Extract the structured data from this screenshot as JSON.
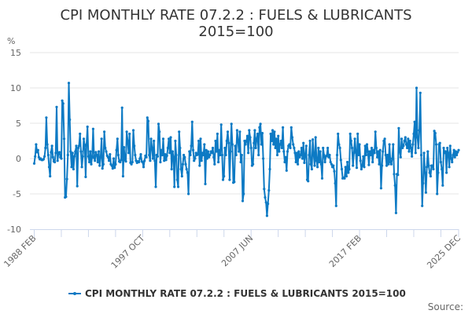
{
  "chart_data": {
    "type": "line",
    "title": "CPI MONTHLY RATE 07.2.2 : FUELS & LUBRICANTS",
    "subtitle": "2015=100",
    "ylabel": "%",
    "xlabel": "",
    "ylim": [
      -10,
      15
    ],
    "yticks": [
      15,
      10,
      5,
      0,
      -5,
      -10
    ],
    "xlim": [
      "1988 FEB",
      "2025 DEC"
    ],
    "xtick_labels": [
      "1988 FEB",
      "1997 OCT",
      "2007 JUN",
      "2017 FEB",
      "2025 DEC"
    ],
    "frequency": "monthly",
    "grid": true,
    "legend_position": "bottom",
    "series": [
      {
        "name": "CPI MONTHLY RATE 07.2.2 : FUELS & LUBRICANTS 2015=100",
        "color": "#0d7ac4",
        "start": "1988 FEB",
        "values": [
          -0.7,
          0.3,
          2.0,
          0.9,
          1.2,
          0.2,
          -0.1,
          0.0,
          -0.2,
          -0.2,
          -0.1,
          0.3,
          1.5,
          5.8,
          2.0,
          0.5,
          -1.2,
          -2.5,
          0.9,
          1.8,
          0.2,
          -0.4,
          -0.5,
          0.8,
          7.3,
          -0.3,
          0.8,
          0.9,
          0.2,
          0.0,
          8.2,
          7.8,
          2.8,
          -5.5,
          -5.4,
          -2.9,
          0.5,
          10.7,
          5.5,
          1.0,
          -1.2,
          0.8,
          -1.5,
          0.3,
          1.0,
          1.8,
          -3.9,
          1.5,
          1.8,
          3.5,
          1.0,
          -1.2,
          0.3,
          2.8,
          1.8,
          -2.6,
          2.0,
          4.5,
          0.3,
          -0.5,
          1.0,
          -0.8,
          0.3,
          4.2,
          0.1,
          -0.3,
          0.9,
          0.5,
          -0.5,
          1.0,
          -1.0,
          0.2,
          2.8,
          -1.4,
          -0.8,
          3.8,
          1.5,
          1.0,
          0.4,
          0.2,
          -0.3,
          0.6,
          -0.8,
          -1.0,
          -1.4,
          0.0,
          -1.3,
          -0.8,
          1.2,
          2.8,
          0.5,
          -0.4,
          -0.5,
          -0.2,
          7.2,
          -2.5,
          1.6,
          -0.2,
          -0.4,
          3.8,
          2.5,
          0.8,
          3.5,
          -0.6,
          -0.8,
          -0.5,
          4.0,
          1.8,
          0.5,
          -0.3,
          -0.6,
          -0.4,
          -0.5,
          0.0,
          0.6,
          -0.4,
          -0.5,
          -1.2,
          -0.3,
          0.4,
          0.2,
          5.8,
          5.3,
          0.5,
          -0.3,
          2.8,
          1.5,
          0.0,
          2.5,
          -0.3,
          -4.0,
          0.5,
          0.3,
          4.9,
          3.8,
          -0.5,
          1.2,
          0.5,
          2.8,
          -0.3,
          0.6,
          -0.2,
          0.4,
          1.5,
          2.8,
          0.8,
          3.0,
          -1.5,
          1.0,
          0.2,
          -4.0,
          2.5,
          0.5,
          -3.0,
          -4.0,
          3.8,
          1.5,
          -1.5,
          -2.5,
          -0.8,
          0.5,
          0.2,
          -0.8,
          -1.5,
          -2.0,
          -5.0,
          1.0,
          0.5,
          1.8,
          5.2,
          1.2,
          -0.3,
          0.0,
          0.8,
          0.5,
          0.6,
          2.5,
          -1.0,
          2.8,
          -0.3,
          0.8,
          0.5,
          2.0,
          -3.6,
          1.2,
          0.0,
          1.0,
          0.2,
          0.5,
          1.0,
          0.8,
          1.5,
          0.2,
          -0.8,
          2.5,
          1.0,
          3.5,
          -0.5,
          1.2,
          0.5,
          4.8,
          0.5,
          -3.0,
          -2.5,
          1.5,
          0.5,
          2.5,
          3.8,
          2.2,
          -3.0,
          1.0,
          4.9,
          2.0,
          -3.4,
          -3.3,
          1.8,
          0.5,
          4.0,
          2.5,
          1.0,
          3.8,
          -0.5,
          0.5,
          -6.0,
          -5.0,
          2.5,
          2.0,
          2.5,
          3.2,
          0.8,
          4.0,
          3.0,
          1.5,
          -1.0,
          -0.8,
          2.2,
          4.0,
          1.5,
          2.8,
          3.5,
          0.5,
          4.4,
          4.9,
          2.0,
          3.6,
          0.0,
          -4.3,
          -5.5,
          -6.2,
          -8.1,
          -6.4,
          -4.5,
          -1.5,
          3.5,
          2.5,
          4.0,
          2.0,
          3.8,
          1.5,
          2.8,
          0.5,
          3.2,
          1.0,
          2.0,
          2.5,
          1.5,
          4.4,
          1.0,
          -0.5,
          0.2,
          -1.7,
          1.0,
          1.8,
          2.0,
          1.5,
          4.4,
          3.0,
          2.0,
          1.5,
          0.8,
          -0.5,
          0.8,
          -0.8,
          1.0,
          0.2,
          0.5,
          1.5,
          0.0,
          2.2,
          -0.6,
          0.5,
          1.8,
          -3.0,
          -3.2,
          0.5,
          2.5,
          -0.8,
          -1.5,
          2.7,
          0.5,
          -1.0,
          3.0,
          -0.3,
          -1.2,
          1.5,
          -0.5,
          1.0,
          -0.8,
          -2.8,
          1.5,
          0.5,
          -0.5,
          0.3,
          0.4,
          1.5,
          0.2,
          0.5,
          -0.5,
          -0.8,
          -1.2,
          -1.0,
          -1.8,
          -3.5,
          -6.7,
          0.5,
          3.5,
          2.0,
          1.5,
          -0.2,
          -1.5,
          -2.8,
          -2.7,
          -2.8,
          -1.2,
          -2.5,
          -0.5,
          -2.0,
          -1.5,
          3.5,
          2.5,
          1.5,
          -1.0,
          0.8,
          2.8,
          1.0,
          -1.3,
          3.5,
          0.5,
          2.0,
          -0.3,
          -1.5,
          -1.0,
          0.3,
          -1.2,
          1.8,
          0.5,
          2.0,
          1.0,
          -0.9,
          1.0,
          0.5,
          1.5,
          -0.5,
          1.2,
          0.8,
          3.8,
          1.5,
          0.2,
          1.0,
          -0.8,
          1.2,
          -4.2,
          -1.0,
          1.0,
          2.5,
          2.8,
          0.5,
          -1.0,
          0.5,
          -0.8,
          2.0,
          -0.5,
          -0.8,
          0.0,
          2.0,
          -2.2,
          -3.8,
          -7.7,
          -2.2,
          -2.3,
          4.3,
          1.0,
          0.2,
          2.8,
          1.5,
          1.8,
          2.5,
          3.0,
          2.0,
          1.5,
          2.8,
          1.0,
          2.5,
          1.5,
          0.3,
          2.0,
          3.5,
          5.2,
          0.8,
          10.0,
          3.0,
          1.5,
          4.0,
          9.3,
          0.5,
          -6.7,
          -3.5,
          0.8,
          -2.0,
          -4.8,
          -1.2,
          1.0,
          -1.0,
          -2.0,
          -2.5,
          -1.0,
          -1.0,
          -1.5,
          3.9,
          3.6,
          2.0,
          -5.0,
          -2.0,
          2.0,
          2.2,
          -0.5,
          -1.5,
          -3.8,
          1.5,
          0.8,
          1.0,
          -2.0,
          1.5,
          0.8,
          -1.2,
          1.8,
          0.0,
          -0.5,
          0.5,
          1.2,
          0.2,
          1.0,
          0.5,
          0.9,
          1.2
        ]
      }
    ]
  },
  "legend": {
    "label": "CPI MONTHLY RATE 07.2.2 : FUELS & LUBRICANTS 2015=100"
  },
  "credits": {
    "source_label": "Source:"
  }
}
